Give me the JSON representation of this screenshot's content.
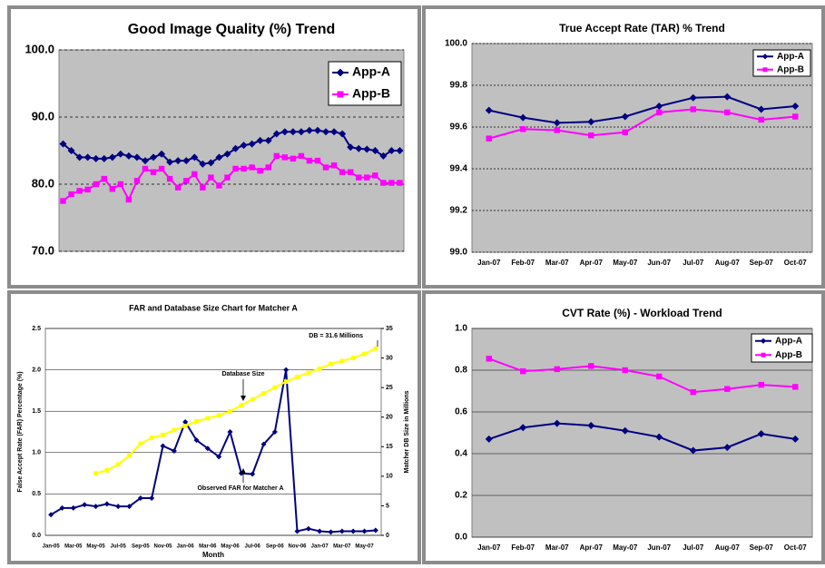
{
  "chart_data": [
    {
      "type": "line",
      "title": "Good Image Quality (%) Trend",
      "plot_color": "#c0c0c0",
      "grid": true,
      "legend": "top-right",
      "categories": [
        null,
        null,
        null,
        null,
        null,
        null,
        null,
        null,
        null,
        null,
        null,
        null,
        null,
        null,
        null,
        null,
        null,
        null,
        null,
        null,
        null,
        null,
        null,
        null,
        null,
        null,
        null,
        null,
        null,
        null,
        null,
        null,
        null,
        null,
        null,
        null,
        null,
        null,
        null,
        null,
        null,
        null
      ],
      "ylim": [
        70,
        100
      ],
      "yticks": [
        {
          "value": 70,
          "label": "70.0"
        },
        {
          "value": 80,
          "label": "80.0"
        },
        {
          "value": 90,
          "label": "90.0"
        },
        {
          "value": 100,
          "label": "100.0"
        }
      ],
      "series": [
        {
          "name": "App-A",
          "color": "#000080",
          "marker": "diamond",
          "values": [
            86,
            85,
            84,
            84,
            83.8,
            83.8,
            84,
            84.5,
            84.2,
            84,
            83.5,
            84,
            84.5,
            83.3,
            83.5,
            83.5,
            84,
            83,
            83.2,
            84,
            84.5,
            85.3,
            85.8,
            86,
            86.5,
            86.5,
            87.5,
            87.8,
            87.8,
            87.8,
            88,
            88,
            87.8,
            87.8,
            87.5,
            85.5,
            85.3,
            85.2,
            85,
            84.2,
            85,
            85
          ]
        },
        {
          "name": "App-B",
          "color": "#ff00ff",
          "marker": "square",
          "values": [
            77.5,
            78.5,
            79,
            79.2,
            80,
            80.8,
            79.3,
            80,
            77.7,
            80.5,
            82.3,
            81.8,
            82.3,
            80.8,
            79.5,
            80.5,
            81.5,
            79.5,
            81,
            79.8,
            81,
            82.3,
            82.3,
            82.5,
            82,
            82.5,
            84.2,
            84,
            83.8,
            84.2,
            83.5,
            83.5,
            82.5,
            82.8,
            81.8,
            81.8,
            81,
            81,
            81.3,
            80.2,
            80.2,
            80.2
          ]
        }
      ]
    },
    {
      "type": "line",
      "title": "True Accept Rate (TAR) % Trend",
      "plot_color": "#c0c0c0",
      "grid": true,
      "legend": "top-right",
      "categories": [
        "Jan-07",
        "Feb-07",
        "Mar-07",
        "Apr-07",
        "May-07",
        "Jun-07",
        "Jul-07",
        "Aug-07",
        "Sep-07",
        "Oct-07"
      ],
      "ylim": [
        99,
        100
      ],
      "yticks": [
        {
          "value": 99,
          "label": "99.0"
        },
        99.2,
        99.4,
        99.6,
        99.8,
        {
          "value": 100,
          "label": "100.0"
        }
      ],
      "series": [
        {
          "name": "App-A",
          "color": "#000080",
          "marker": "diamond",
          "values": [
            99.68,
            99.645,
            99.62,
            99.625,
            99.65,
            99.7,
            99.74,
            99.745,
            99.685,
            99.7
          ]
        },
        {
          "name": "App-B",
          "color": "#ff00ff",
          "marker": "square",
          "values": [
            99.545,
            99.59,
            99.585,
            99.56,
            99.575,
            99.67,
            99.685,
            99.67,
            99.635,
            99.65
          ]
        }
      ]
    },
    {
      "type": "line",
      "title": "FAR and Database Size Chart for Matcher A",
      "plot_color": "#ffffff",
      "grid": true,
      "x_label": "Month",
      "y_label": "False Accept Rate (FAR) Percentage (%)",
      "y2_label": "Matcher DB Size in Millions",
      "annotations": [
        "DB = 31.6 Millions",
        "Database Size",
        "Observed FAR for Matcher A"
      ],
      "categories": [
        "Jan-05",
        null,
        "Mar-05",
        null,
        "May-05",
        null,
        "Jul-05",
        null,
        "Sep-05",
        null,
        "Nov-05",
        null,
        "Jan-06",
        null,
        "Mar-06",
        null,
        "May-06",
        null,
        "Jul-06",
        null,
        "Sep-06",
        null,
        "Nov-06",
        null,
        "Jan-07",
        null,
        "Mar-07",
        null,
        "May-07",
        null
      ],
      "ylim": [
        0,
        2.5
      ],
      "yticks": [
        {
          "value": 0,
          "label": "0.0"
        },
        0.5,
        {
          "value": 1,
          "label": "1.0"
        },
        1.5,
        {
          "value": 2,
          "label": "2.0"
        },
        2.5
      ],
      "y2lim": [
        0,
        35
      ],
      "y2ticks": [
        0,
        5,
        10,
        15,
        20,
        25,
        30,
        35
      ],
      "series": [
        {
          "color": "#000080",
          "marker": "diamond",
          "values": [
            0.25,
            0.33,
            0.33,
            0.37,
            0.35,
            0.38,
            0.35,
            0.35,
            0.45,
            0.45,
            1.08,
            1.02,
            1.37,
            1.15,
            1.05,
            0.95,
            1.25,
            0.75,
            0.74,
            1.1,
            1.25,
            2.0,
            0.05,
            0.08,
            0.05,
            0.04,
            0.05,
            0.05,
            0.05,
            0.06
          ]
        },
        {
          "color": "#ffff00",
          "marker": "square",
          "axis": "y2",
          "values": [
            null,
            null,
            null,
            null,
            10.5,
            11,
            12,
            13.5,
            15.5,
            16.5,
            17,
            17.8,
            18.5,
            19.3,
            19.8,
            20.3,
            21,
            22,
            23,
            24,
            25,
            26,
            26.8,
            27.5,
            28.2,
            29,
            29.5,
            30,
            30.7,
            31.6
          ]
        }
      ]
    },
    {
      "type": "line",
      "title": "CVT Rate (%) - Workload Trend",
      "plot_color": "#c0c0c0",
      "grid": true,
      "legend": "top-right",
      "categories": [
        "Jan-07",
        "Feb-07",
        "Mar-07",
        "Apr-07",
        "May-07",
        "Jun-07",
        "Jul-07",
        "Aug-07",
        "Sep-07",
        "Oct-07"
      ],
      "ylim": [
        0,
        1
      ],
      "yticks": [
        {
          "value": 0,
          "label": "0.0"
        },
        0.2,
        0.4,
        0.6,
        0.8,
        {
          "value": 1,
          "label": "1.0"
        }
      ],
      "series": [
        {
          "name": "App-A",
          "color": "#000080",
          "marker": "diamond",
          "values": [
            0.47,
            0.525,
            0.545,
            0.535,
            0.51,
            0.48,
            0.415,
            0.43,
            0.495,
            0.47
          ]
        },
        {
          "name": "App-B",
          "color": "#ff00ff",
          "marker": "square",
          "values": [
            0.855,
            0.795,
            0.805,
            0.82,
            0.8,
            0.77,
            0.695,
            0.71,
            0.73,
            0.72
          ]
        }
      ]
    }
  ]
}
